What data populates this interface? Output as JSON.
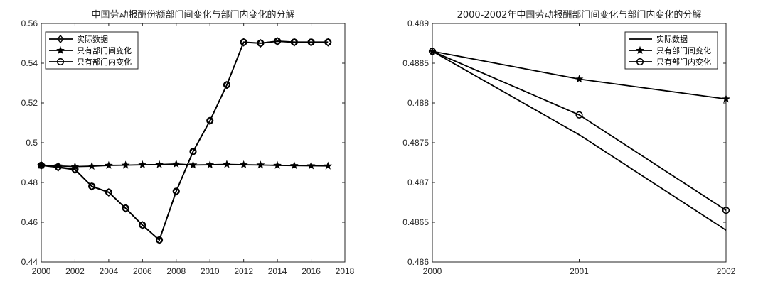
{
  "chart_data": [
    {
      "type": "line",
      "title": "中国劳动报酬份额部门间变化与部门内变化的分解",
      "xlabel": "",
      "ylabel": "",
      "xlim": [
        2000,
        2018
      ],
      "ylim": [
        0.44,
        0.56
      ],
      "xticks": [
        "2000",
        "2002",
        "2004",
        "2006",
        "2008",
        "2010",
        "2012",
        "2014",
        "2016",
        "2018"
      ],
      "yticks": [
        "0.44",
        "0.46",
        "0.48",
        "0.5",
        "0.52",
        "0.54",
        "0.56"
      ],
      "grid": false,
      "legend_position": "top-left",
      "x": [
        2000,
        2001,
        2002,
        2003,
        2004,
        2005,
        2006,
        2007,
        2008,
        2009,
        2010,
        2011,
        2012,
        2013,
        2014,
        2015,
        2016,
        2017
      ],
      "series": [
        {
          "name": "实际数据",
          "marker": "diamond",
          "values": [
            0.4886,
            0.4876,
            0.4864,
            0.478,
            0.475,
            0.467,
            0.4585,
            0.451,
            0.4755,
            0.4955,
            0.511,
            0.529,
            0.5505,
            0.55,
            0.551,
            0.5505,
            0.5505,
            0.5505
          ]
        },
        {
          "name": "只有部门间变化",
          "marker": "star",
          "values": [
            0.4886,
            0.4883,
            0.488,
            0.4882,
            0.4886,
            0.4887,
            0.4889,
            0.489,
            0.4893,
            0.4888,
            0.4889,
            0.4891,
            0.4889,
            0.4888,
            0.4886,
            0.4885,
            0.4884,
            0.4883
          ]
        },
        {
          "name": "只有部门内变化",
          "marker": "circle",
          "values": [
            0.4886,
            0.48785,
            0.48665,
            0.4781,
            0.4751,
            0.4671,
            0.4586,
            0.4511,
            0.4756,
            0.4956,
            0.5111,
            0.5291,
            0.5506,
            0.5501,
            0.5511,
            0.5506,
            0.5506,
            0.5506
          ]
        }
      ]
    },
    {
      "type": "line",
      "title": "2000-2002年中国劳动报酬部门间变化与部门内变化的分解",
      "xlabel": "",
      "ylabel": "",
      "xlim": [
        2000,
        2002
      ],
      "ylim": [
        0.486,
        0.489
      ],
      "xticks": [
        "2000",
        "2001",
        "2002"
      ],
      "yticks": [
        "0.486",
        "0.4865",
        "0.487",
        "0.4875",
        "0.488",
        "0.4885",
        "0.489"
      ],
      "grid": false,
      "legend_position": "top-right",
      "x": [
        2000,
        2001,
        2002
      ],
      "series": [
        {
          "name": "实际数据",
          "marker": "none",
          "values": [
            0.48865,
            0.4876,
            0.4864
          ]
        },
        {
          "name": "只有部门间变化",
          "marker": "star",
          "values": [
            0.48865,
            0.4883,
            0.48805
          ]
        },
        {
          "name": "只有部门内变化",
          "marker": "circle",
          "values": [
            0.48865,
            0.48785,
            0.48665
          ]
        }
      ]
    }
  ]
}
